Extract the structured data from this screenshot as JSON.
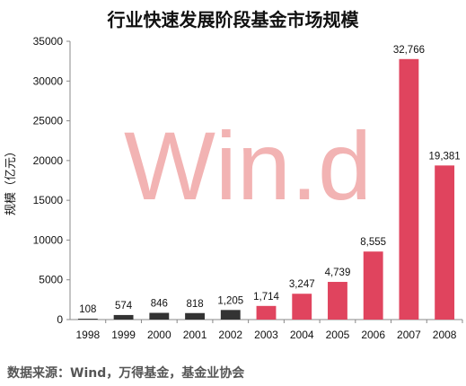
{
  "chart_data": {
    "type": "bar",
    "title": "行业快速发展阶段基金市场规模",
    "ylabel": "规模（亿元）",
    "xlabel": "",
    "categories": [
      "1998",
      "1999",
      "2000",
      "2001",
      "2002",
      "2003",
      "2004",
      "2005",
      "2006",
      "2007",
      "2008"
    ],
    "values": [
      108,
      574,
      846,
      818,
      1205,
      1714,
      3247,
      4739,
      8555,
      32766,
      19381
    ],
    "value_labels": [
      "108",
      "574",
      "846",
      "818",
      "1,205",
      "1,714",
      "3,247",
      "4,739",
      "8,555",
      "32,766",
      "19,381"
    ],
    "bar_colors": [
      "#333333",
      "#333333",
      "#333333",
      "#333333",
      "#333333",
      "#e0445e",
      "#e0445e",
      "#e0445e",
      "#e0445e",
      "#e0445e",
      "#e0445e"
    ],
    "ylim": [
      0,
      35000
    ],
    "yticks": [
      0,
      5000,
      10000,
      15000,
      20000,
      25000,
      30000,
      35000
    ],
    "ytick_labels": [
      "0",
      "5000",
      "10000",
      "15000",
      "20000",
      "25000",
      "30000",
      "35000"
    ],
    "grid": false,
    "legend": "none"
  },
  "watermark": "Win.d",
  "source_note": "数据来源：Wind，万得基金，基金业协会"
}
